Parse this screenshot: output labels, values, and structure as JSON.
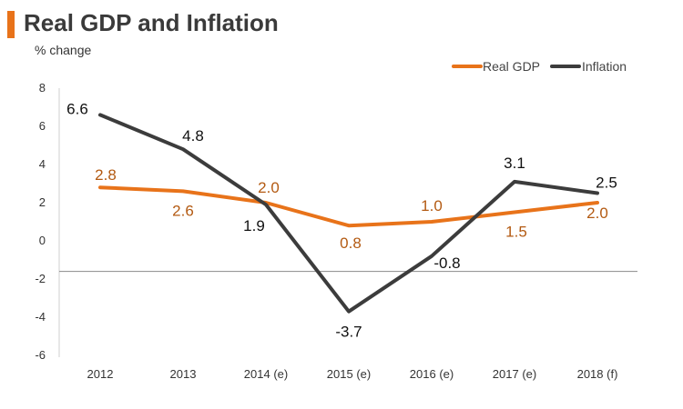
{
  "chart_data": {
    "type": "line",
    "title": "Real GDP and Inflation",
    "subtitle": "% change",
    "categories": [
      "2012",
      "2013",
      "2014 (e)",
      "2015 (e)",
      "2016 (e)",
      "2017 (e)",
      "2018 (f)"
    ],
    "series": [
      {
        "name": "Real GDP",
        "color": "#e8731a",
        "label_color": "#b35a12",
        "values": [
          2.8,
          2.6,
          2.0,
          0.8,
          1.0,
          1.5,
          2.0
        ],
        "labels": [
          "2.8",
          "2.6",
          "2.0",
          "0.8",
          "1.0",
          "1.5",
          "2.0"
        ]
      },
      {
        "name": "Inflation",
        "color": "#3c3c3c",
        "label_color": "#111111",
        "values": [
          6.6,
          4.8,
          1.9,
          -3.7,
          -0.8,
          3.1,
          2.5
        ],
        "labels": [
          "6.6",
          "4.8",
          "1.9",
          "-3.7",
          "-0.8",
          "3.1",
          "2.5"
        ]
      }
    ],
    "ylim": [
      -6,
      8
    ],
    "yticks": [
      "8",
      "6",
      "4",
      "2",
      "0",
      "-2",
      "-4",
      "-6"
    ],
    "ytick_values": [
      8,
      6,
      4,
      2,
      0,
      -2,
      -4,
      -6
    ],
    "reference_line": -1.6,
    "legend_position": "top-right",
    "grid": false
  }
}
